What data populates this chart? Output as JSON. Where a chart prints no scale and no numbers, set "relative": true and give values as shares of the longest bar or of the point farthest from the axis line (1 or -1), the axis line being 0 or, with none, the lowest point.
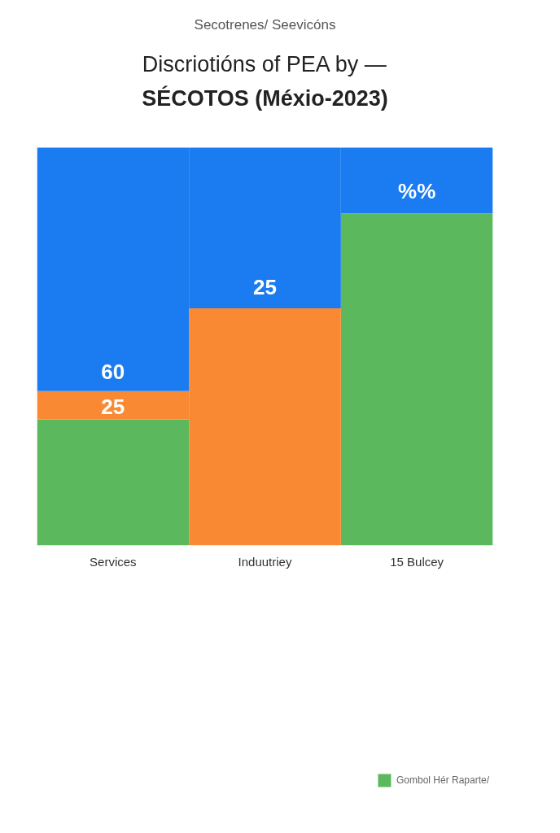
{
  "chart_data": {
    "type": "bar",
    "stacked": true,
    "relative": true,
    "subtitle": "Secotrenes/ Seevicóns",
    "title": "Discriotións of PEA by —\nSÉCOTOS (Méxio-2023)",
    "categories": [
      "Services",
      "Induutriey",
      "15 Bulcey"
    ],
    "series": [
      {
        "name": "Gombol Hér Raparte/",
        "color": "#5cb85c",
        "values": [
          0.317,
          null,
          0.835
        ]
      },
      {
        "color": "#f98a33",
        "values": [
          0.071,
          0.596,
          null
        ]
      },
      {
        "color": "#1a7cf0",
        "values": [
          0.612,
          0.404,
          0.165
        ]
      }
    ],
    "annotations": [
      "60",
      "25",
      "25",
      "%%"
    ],
    "legend": "bottom right",
    "grid": false
  }
}
